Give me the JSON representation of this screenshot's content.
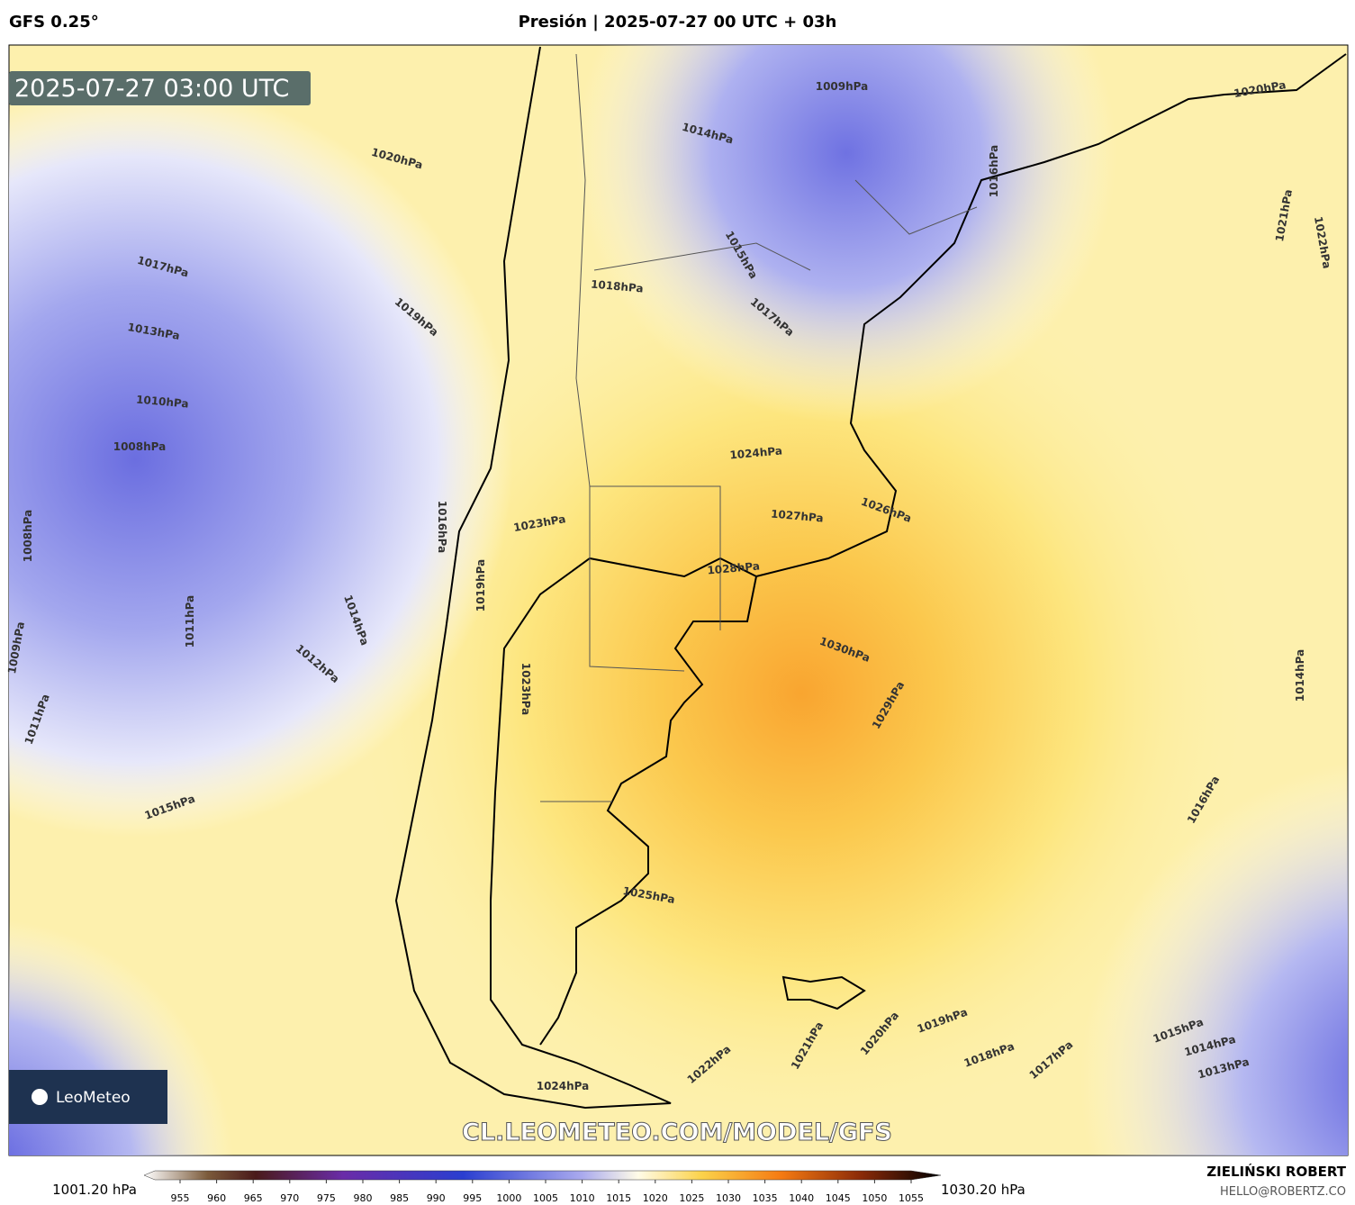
{
  "header": {
    "model": "GFS 0.25°",
    "title": "Presión | 2025-07-27 00 UTC + 03h"
  },
  "timestamp": "2025-07-27 03:00 UTC",
  "logo": "LeoMeteo",
  "watermark": "CL.LEOMETEO.COM/MODEL/GFS",
  "contour_labels": [
    "1020hPa",
    "1009hPa",
    "1014hPa",
    "1020hPa",
    "1017hPa",
    "1019hPa",
    "1013hPa",
    "1010hPa",
    "1008hPa",
    "1018hPa",
    "1015hPa",
    "1017hPa",
    "1016hPa",
    "1021hPa",
    "1022hPa",
    "1024hPa",
    "1027hPa",
    "1026hPa",
    "1028hPa",
    "1030hPa",
    "1029hPa",
    "1016hPa",
    "1008hPa",
    "1011hPa",
    "1014hPa",
    "1012hPa",
    "1009hPa",
    "1011hPa",
    "1015hPa",
    "1023hPa",
    "1019hPa",
    "1023hPa",
    "1025hPa",
    "1016hPa",
    "1014hPa",
    "1018hPa",
    "1017hPa",
    "1019hPa",
    "1020hPa",
    "1021hPa",
    "1022hPa",
    "1015hPa",
    "1014hPa",
    "1013hPa",
    "1024hPa"
  ],
  "colorbar": {
    "min_label": "1001.20 hPa",
    "max_label": "1030.20 hPa",
    "ticks": [
      955,
      960,
      965,
      970,
      975,
      980,
      985,
      990,
      995,
      1000,
      1005,
      1010,
      1015,
      1020,
      1025,
      1030,
      1035,
      1040,
      1045,
      1050,
      1055
    ]
  },
  "credit": {
    "author": "ZIELIŃSKI ROBERT",
    "email": "HELLO@ROBERTZ.CO"
  }
}
